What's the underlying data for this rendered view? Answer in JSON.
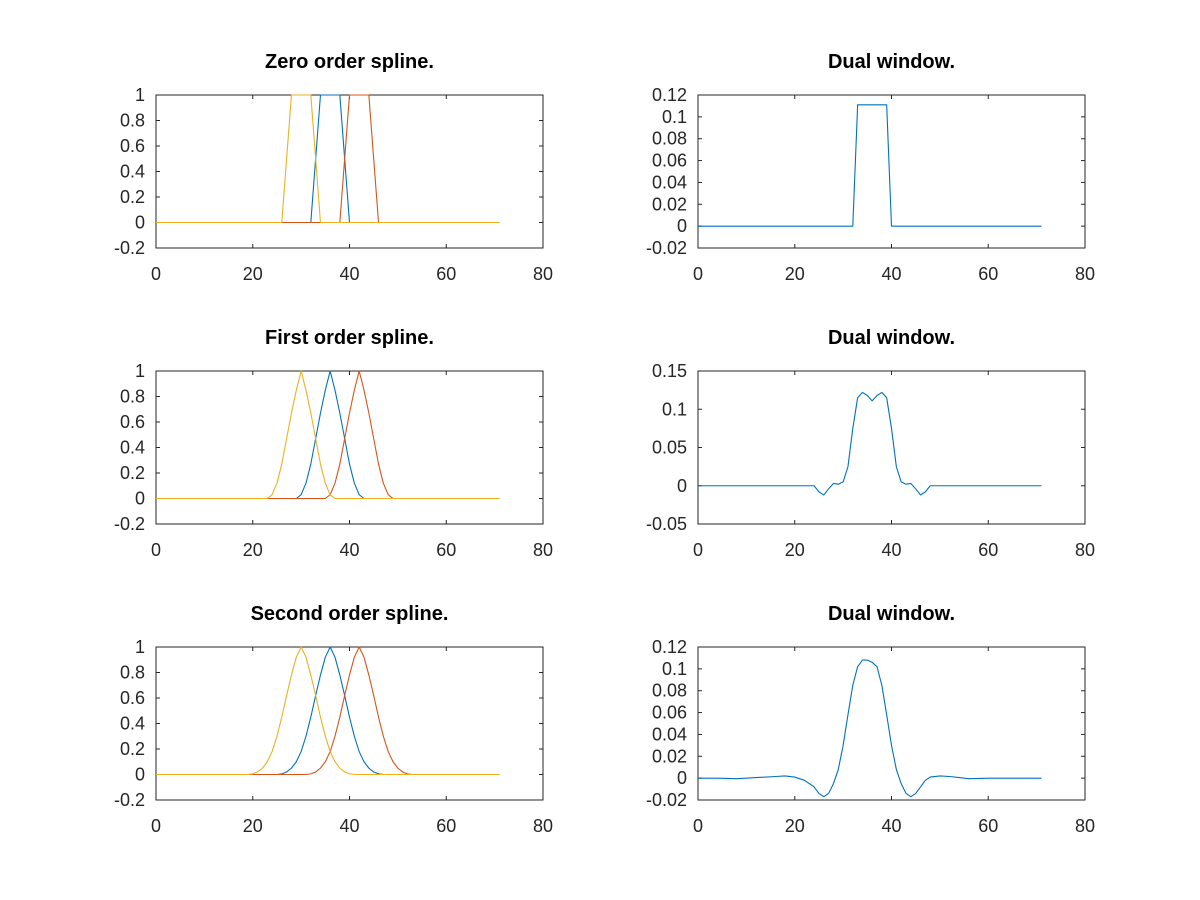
{
  "colors": {
    "blue": "#0072BD",
    "orange": "#D95319",
    "yellow": "#EDB120",
    "axis": "#262626"
  },
  "chart_data": [
    {
      "type": "line",
      "title": "Zero order spline.",
      "xlim": [
        0,
        80
      ],
      "ylim": [
        -0.2,
        1
      ],
      "xticks": [
        "0",
        "20",
        "40",
        "60",
        "80"
      ],
      "yticks": [
        "-0.2",
        "0",
        "0.2",
        "0.4",
        "0.6",
        "0.8",
        "1"
      ],
      "series": [
        {
          "color": "blue",
          "x": [
            0,
            32,
            34,
            38,
            40,
            71
          ],
          "y": [
            0,
            0,
            1,
            1,
            0,
            0
          ]
        },
        {
          "color": "orange",
          "x": [
            0,
            38,
            40,
            44,
            46,
            71
          ],
          "y": [
            0,
            0,
            1,
            1,
            0,
            0
          ]
        },
        {
          "color": "yellow",
          "x": [
            0,
            26,
            28,
            32,
            34,
            71
          ],
          "y": [
            0,
            0,
            1,
            1,
            0,
            0
          ]
        }
      ]
    },
    {
      "type": "line",
      "title": "Dual window.",
      "xlim": [
        0,
        80
      ],
      "ylim": [
        -0.02,
        0.12
      ],
      "xticks": [
        "0",
        "20",
        "40",
        "60",
        "80"
      ],
      "yticks": [
        "-0.02",
        "0",
        "0.02",
        "0.04",
        "0.06",
        "0.08",
        "0.1",
        "0.12"
      ],
      "series": [
        {
          "color": "blue",
          "x": [
            0,
            32,
            33,
            39,
            40,
            71
          ],
          "y": [
            0,
            0,
            0.111,
            0.111,
            0,
            0
          ]
        }
      ]
    },
    {
      "type": "line",
      "title": "First order spline.",
      "xlim": [
        0,
        80
      ],
      "ylim": [
        -0.2,
        1
      ],
      "xticks": [
        "0",
        "20",
        "40",
        "60",
        "80"
      ],
      "yticks": [
        "-0.2",
        "0",
        "0.2",
        "0.4",
        "0.6",
        "0.8",
        "1"
      ],
      "series": [
        {
          "color": "blue",
          "x": [
            0,
            29,
            30,
            31,
            32,
            33,
            34,
            35,
            36,
            37,
            38,
            39,
            40,
            41,
            42,
            43,
            71
          ],
          "y": [
            0,
            0,
            0.03,
            0.12,
            0.27,
            0.47,
            0.67,
            0.85,
            1,
            0.85,
            0.67,
            0.47,
            0.27,
            0.12,
            0.03,
            0,
            0
          ]
        },
        {
          "color": "orange",
          "x": [
            0,
            35,
            36,
            37,
            38,
            39,
            40,
            41,
            42,
            43,
            44,
            45,
            46,
            47,
            48,
            49,
            71
          ],
          "y": [
            0,
            0,
            0.03,
            0.12,
            0.27,
            0.47,
            0.67,
            0.85,
            1,
            0.85,
            0.67,
            0.47,
            0.27,
            0.12,
            0.03,
            0,
            0
          ]
        },
        {
          "color": "yellow",
          "x": [
            0,
            23,
            24,
            25,
            26,
            27,
            28,
            29,
            30,
            31,
            32,
            33,
            34,
            35,
            36,
            37,
            71
          ],
          "y": [
            0,
            0,
            0.03,
            0.12,
            0.27,
            0.47,
            0.67,
            0.85,
            1,
            0.85,
            0.67,
            0.47,
            0.27,
            0.12,
            0.03,
            0,
            0
          ]
        }
      ]
    },
    {
      "type": "line",
      "title": "Dual window.",
      "xlim": [
        0,
        80
      ],
      "ylim": [
        -0.05,
        0.15
      ],
      "xticks": [
        "0",
        "20",
        "40",
        "60",
        "80"
      ],
      "yticks": [
        "-0.05",
        "0",
        "0.05",
        "0.1",
        "0.15"
      ],
      "series": [
        {
          "color": "blue",
          "x": [
            0,
            23,
            24,
            25,
            26,
            27,
            28,
            29,
            30,
            31,
            32,
            33,
            34,
            35,
            36,
            37,
            38,
            39,
            40,
            41,
            42,
            43,
            44,
            45,
            46,
            47,
            48,
            49,
            71
          ],
          "y": [
            0,
            0,
            0,
            -0.008,
            -0.012,
            -0.004,
            0.003,
            0.002,
            0.005,
            0.025,
            0.075,
            0.115,
            0.122,
            0.118,
            0.111,
            0.118,
            0.122,
            0.115,
            0.075,
            0.025,
            0.005,
            0.002,
            0.003,
            -0.004,
            -0.012,
            -0.008,
            0,
            0,
            0
          ]
        }
      ]
    },
    {
      "type": "line",
      "title": "Second order spline.",
      "xlim": [
        0,
        80
      ],
      "ylim": [
        -0.2,
        1
      ],
      "xticks": [
        "0",
        "20",
        "40",
        "60",
        "80"
      ],
      "yticks": [
        "-0.2",
        "0",
        "0.2",
        "0.4",
        "0.6",
        "0.8",
        "1"
      ],
      "series": [
        {
          "color": "blue",
          "x": [
            0,
            25,
            26,
            27,
            28,
            29,
            30,
            31,
            32,
            33,
            34,
            35,
            36,
            37,
            38,
            39,
            40,
            41,
            42,
            43,
            44,
            45,
            46,
            47,
            71
          ],
          "y": [
            0,
            0,
            0.005,
            0.02,
            0.05,
            0.1,
            0.18,
            0.3,
            0.45,
            0.62,
            0.78,
            0.92,
            1,
            0.92,
            0.78,
            0.62,
            0.45,
            0.3,
            0.18,
            0.1,
            0.05,
            0.02,
            0.005,
            0,
            0
          ]
        },
        {
          "color": "orange",
          "x": [
            0,
            31,
            32,
            33,
            34,
            35,
            36,
            37,
            38,
            39,
            40,
            41,
            42,
            43,
            44,
            45,
            46,
            47,
            48,
            49,
            50,
            51,
            52,
            53,
            71
          ],
          "y": [
            0,
            0,
            0.005,
            0.02,
            0.05,
            0.1,
            0.18,
            0.3,
            0.45,
            0.62,
            0.78,
            0.92,
            1,
            0.92,
            0.78,
            0.62,
            0.45,
            0.3,
            0.18,
            0.1,
            0.05,
            0.02,
            0.005,
            0,
            0
          ]
        },
        {
          "color": "yellow",
          "x": [
            0,
            19,
            20,
            21,
            22,
            23,
            24,
            25,
            26,
            27,
            28,
            29,
            30,
            31,
            32,
            33,
            34,
            35,
            36,
            37,
            38,
            39,
            40,
            41,
            71
          ],
          "y": [
            0,
            0,
            0.005,
            0.02,
            0.05,
            0.1,
            0.18,
            0.3,
            0.45,
            0.62,
            0.78,
            0.92,
            1,
            0.92,
            0.78,
            0.62,
            0.45,
            0.3,
            0.18,
            0.1,
            0.05,
            0.02,
            0.005,
            0,
            0
          ]
        }
      ]
    },
    {
      "type": "line",
      "title": "Dual window.",
      "xlim": [
        0,
        80
      ],
      "ylim": [
        -0.02,
        0.12
      ],
      "xticks": [
        "0",
        "20",
        "40",
        "60",
        "80"
      ],
      "yticks": [
        "-0.02",
        "0",
        "0.02",
        "0.04",
        "0.06",
        "0.08",
        "0.1",
        "0.12"
      ],
      "series": [
        {
          "color": "blue",
          "x": [
            0,
            4,
            8,
            12,
            16,
            18,
            20,
            22,
            24,
            25,
            26,
            27,
            28,
            29,
            30,
            31,
            32,
            33,
            34,
            35,
            36,
            37,
            38,
            39,
            40,
            41,
            42,
            43,
            44,
            45,
            46,
            47,
            48,
            50,
            52,
            54,
            56,
            60,
            64,
            68,
            71
          ],
          "y": [
            0,
            0,
            -0.0005,
            0.0005,
            0.0015,
            0.002,
            0.001,
            -0.002,
            -0.008,
            -0.014,
            -0.017,
            -0.014,
            -0.005,
            0.008,
            0.03,
            0.058,
            0.085,
            0.102,
            0.108,
            0.108,
            0.106,
            0.102,
            0.085,
            0.058,
            0.03,
            0.008,
            -0.005,
            -0.014,
            -0.017,
            -0.014,
            -0.008,
            -0.002,
            0.001,
            0.002,
            0.0015,
            0.0005,
            -0.0005,
            0,
            0,
            0,
            0
          ]
        }
      ]
    }
  ]
}
